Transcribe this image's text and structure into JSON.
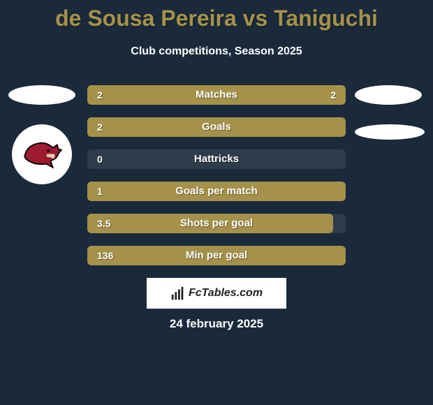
{
  "header": {
    "title": "de Sousa Pereira vs Taniguchi",
    "subtitle": "Club competitions, Season 2025",
    "title_color": "#a5914a"
  },
  "background_color": "#1a2a3a",
  "bar_fill_color": "#a5914a",
  "bars": [
    {
      "label": "Matches",
      "left_val": "2",
      "right_val": "2",
      "fill_pct": 100
    },
    {
      "label": "Goals",
      "left_val": "2",
      "right_val": "",
      "fill_pct": 100
    },
    {
      "label": "Hattricks",
      "left_val": "0",
      "right_val": "",
      "fill_pct": 0
    },
    {
      "label": "Goals per match",
      "left_val": "1",
      "right_val": "",
      "fill_pct": 100
    },
    {
      "label": "Shots per goal",
      "left_val": "3.5",
      "right_val": "",
      "fill_pct": 95
    },
    {
      "label": "Min per goal",
      "left_val": "136",
      "right_val": "",
      "fill_pct": 100
    }
  ],
  "logo_colors": {
    "body": "#9c1b30",
    "outline": "#000000",
    "accent": "#e0cba0"
  },
  "watermark_text": "FcTables.com",
  "date": "24 february 2025"
}
